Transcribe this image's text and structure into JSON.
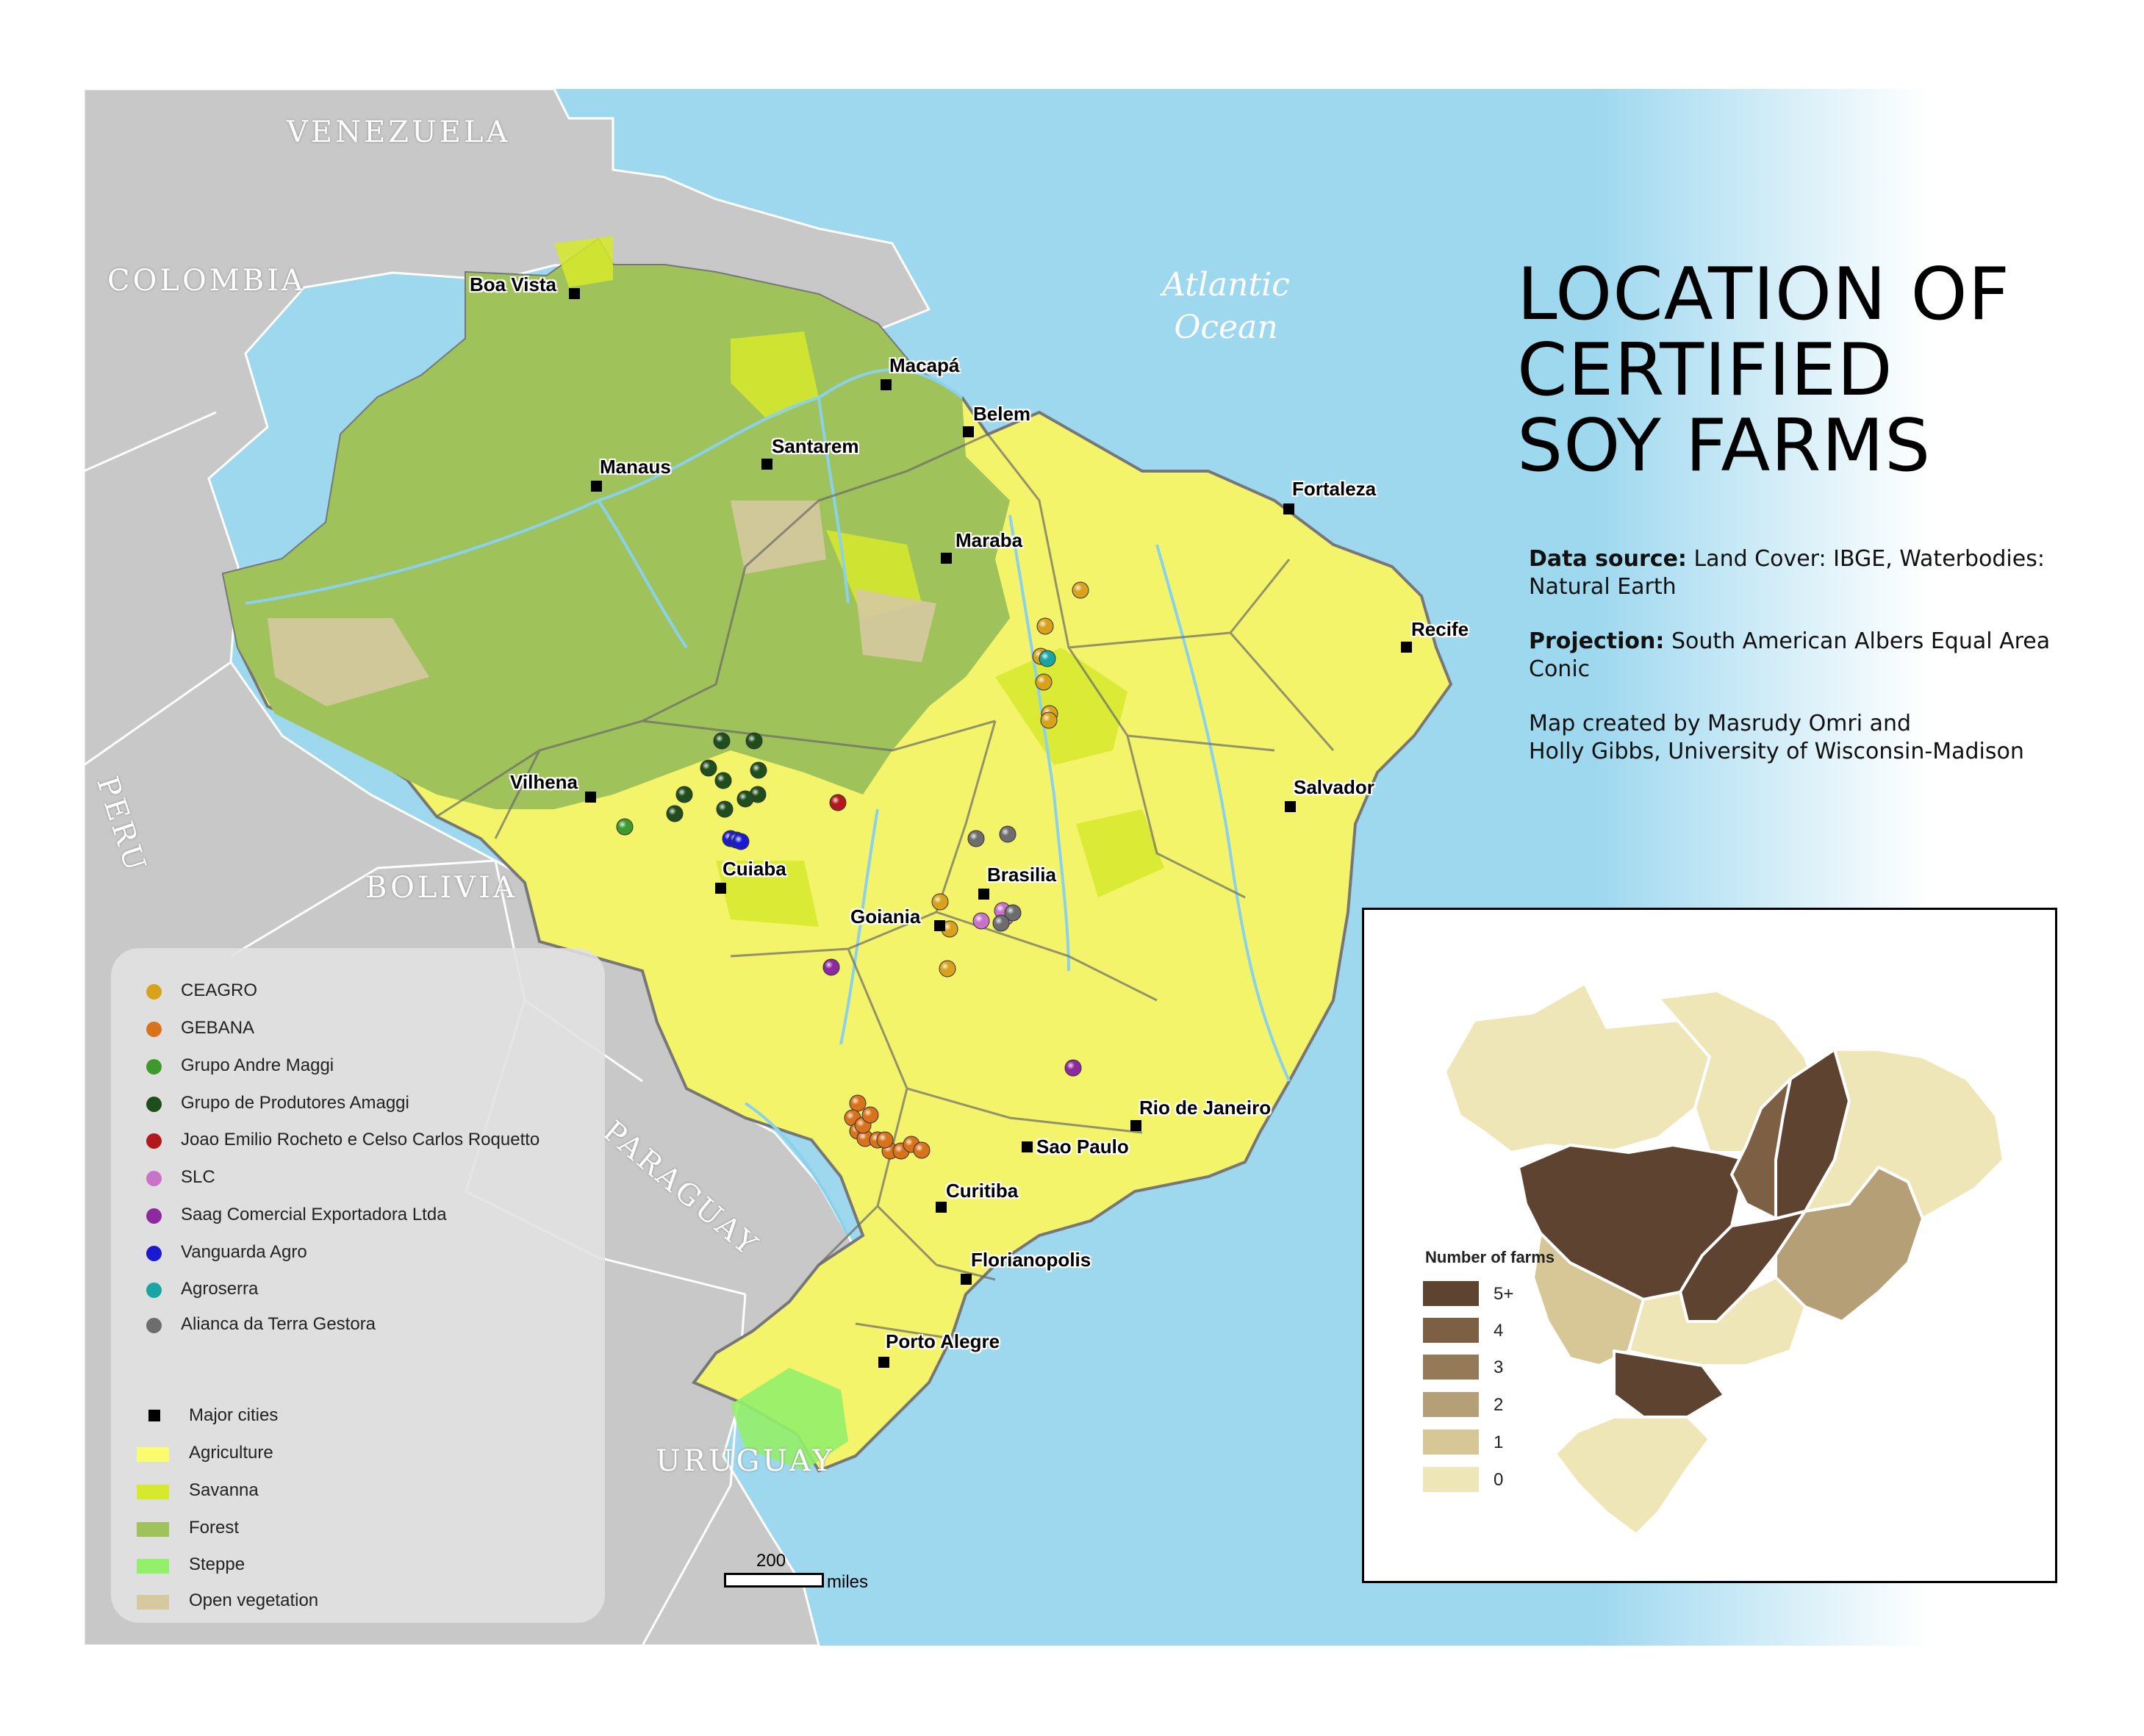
{
  "title": {
    "line1": "LOCATION OF",
    "line2": "CERTIFIED",
    "line3": "SOY FARMS"
  },
  "info": {
    "data_source_label": "Data source:",
    "data_source_text": "Land Cover: IBGE, Waterbodies:",
    "data_source_text2": "Natural Earth",
    "projection_label": "Projection:",
    "projection_text": "South American Albers Equal Area",
    "projection_text2": "Conic",
    "credit_line1": "Map created by Masrudy Omri and",
    "credit_line2": "Holly Gibbs, University of Wisconsin-Madison"
  },
  "countries": {
    "venezuela": "VENEZUELA",
    "colombia": "COLOMBIA",
    "peru": "PERU",
    "bolivia": "BOLIVIA",
    "paraguay": "PARAGUAY",
    "uruguay": "URUGUAY"
  },
  "ocean": {
    "line1": "Atlantic",
    "line2": "Ocean"
  },
  "cities": {
    "boa_vista": "Boa Vista",
    "macapa": "Macapá",
    "belem": "Belem",
    "santarem": "Santarem",
    "manaus": "Manaus",
    "fortaleza": "Fortaleza",
    "maraba": "Maraba",
    "recife": "Recife",
    "salvador": "Salvador",
    "vilhena": "Vilhena",
    "cuiaba": "Cuiaba",
    "brasilia": "Brasilia",
    "goiania": "Goiania",
    "rio_de_janeiro": "Rio de Janeiro",
    "sao_paulo": "Sao Paulo",
    "curitiba": "Curitiba",
    "florianopolis": "Florianopolis",
    "porto_alegre": "Porto Alegre"
  },
  "legend": {
    "companies": [
      {
        "label": "CEAGRO",
        "color": "#d9a21b"
      },
      {
        "label": "GEBANA",
        "color": "#d9731b"
      },
      {
        "label": "Grupo Andre Maggi",
        "color": "#3f9a2e"
      },
      {
        "label": "Grupo de Produtores Amaggi",
        "color": "#1f4d1c"
      },
      {
        "label": "Joao Emilio Rocheto e Celso Carlos Roquetto",
        "color": "#b3181c"
      },
      {
        "label": "SLC",
        "color": "#c873c8"
      },
      {
        "label": "Saag Comercial Exportadora Ltda",
        "color": "#8e2aa0"
      },
      {
        "label": "Vanguarda Agro",
        "color": "#1a1ad0"
      },
      {
        "label": "Agroserra",
        "color": "#1aa5a5"
      },
      {
        "label": "Alianca da Terra Gestora",
        "color": "#6d6d6d"
      }
    ],
    "major_cities": "Major cities",
    "land_cover": [
      {
        "label": "Agriculture",
        "color": "#fbfb6e"
      },
      {
        "label": "Savanna",
        "color": "#d6e92c"
      },
      {
        "label": "Forest",
        "color": "#9fc25a"
      },
      {
        "label": "Steppe",
        "color": "#93f06a"
      },
      {
        "label": "Open vegetation",
        "color": "#d6c9a0"
      }
    ]
  },
  "inset": {
    "title": "Number of farms",
    "bins": [
      {
        "label": "5+",
        "color": "#5e4330"
      },
      {
        "label": "4",
        "color": "#7d6043"
      },
      {
        "label": "3",
        "color": "#957a57"
      },
      {
        "label": "2",
        "color": "#b59f76"
      },
      {
        "label": "1",
        "color": "#d7c796"
      },
      {
        "label": "0",
        "color": "#eee6b6"
      }
    ]
  },
  "scale": {
    "value": "200",
    "unit": "miles"
  }
}
